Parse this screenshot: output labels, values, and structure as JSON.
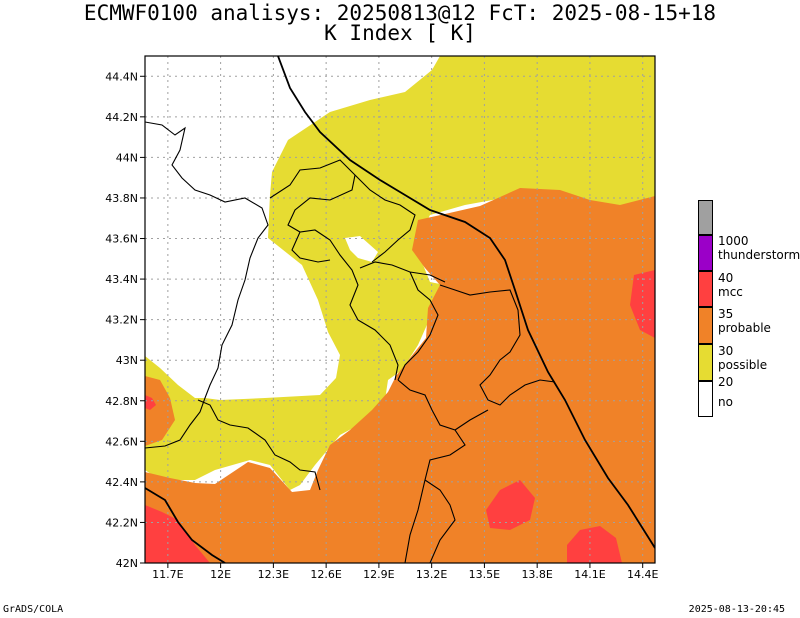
{
  "title_line1": "ECMWF0100 analisys: 20250813@12 FcT: 2025-08-15+18",
  "title_line2": "K Index [  K]",
  "footer_left": "GrADS/COLA",
  "footer_right": "2025-08-13-20:45",
  "chart_data": {
    "type": "heatmap",
    "title": "K Index [  K]",
    "subtitle": "ECMWF0100 analisys: 20250813@12 FcT: 2025-08-15+18",
    "x_ticks": [
      "11.7E",
      "12E",
      "12.3E",
      "12.6E",
      "12.9E",
      "13.2E",
      "13.5E",
      "13.8E",
      "14.1E",
      "14.4E"
    ],
    "y_ticks": [
      "42N",
      "42.2N",
      "42.4N",
      "42.6N",
      "42.8N",
      "43N",
      "43.2N",
      "43.4N",
      "43.6N",
      "43.8N",
      "44N",
      "44.2N",
      "44.4N"
    ],
    "xlim": [
      11.57,
      14.47
    ],
    "ylim": [
      42.0,
      44.5
    ],
    "grid": true,
    "legend_position": "right",
    "legend": [
      {
        "label": "thunderstorm",
        "threshold": "1000",
        "range": [
          40,
          1000
        ],
        "color": "#9b00c8"
      },
      {
        "label": "mcc",
        "threshold": "40",
        "range": [
          35,
          40
        ],
        "color": "#ff4040"
      },
      {
        "label": "probable",
        "threshold": "35",
        "range": [
          30,
          35
        ],
        "color": "#f08228"
      },
      {
        "label": "possible",
        "threshold": "30",
        "range": [
          20,
          30
        ],
        "color": "#e6dc32"
      },
      {
        "label": "no",
        "threshold": "20",
        "range": [
          null,
          20
        ],
        "color": "#ffffff"
      }
    ],
    "legend_top_color": "#a0a0a0"
  }
}
